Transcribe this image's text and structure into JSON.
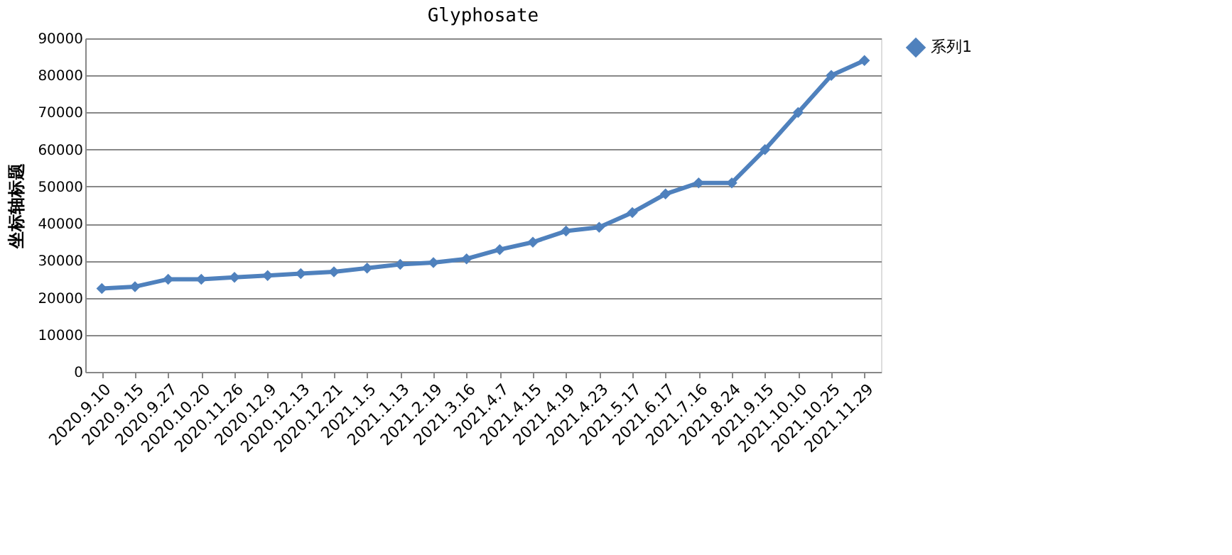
{
  "chart_data": {
    "type": "line",
    "title": "Glyphosate",
    "ylabel": "坐标轴标题",
    "categories": [
      "2020.9.10",
      "2020.9.15",
      "2020.9.27",
      "2020.10.20",
      "2020.11.26",
      "2020.12.9",
      "2020.12.13",
      "2020.12.21",
      "2021.1.5",
      "2021.1.13",
      "2021.2.19",
      "2021.3.16",
      "2021.4.7",
      "2021.4.15",
      "2021.4.19",
      "2021.4.23",
      "2021.5.17",
      "2021.6.17",
      "2021.7.16",
      "2021.8.24",
      "2021.9.15",
      "2021.10.10",
      "2021.10.25",
      "2021.11.29"
    ],
    "series": [
      {
        "name": "系列1",
        "color": "#4f81bd",
        "values": [
          22500,
          23000,
          25000,
          25000,
          25500,
          26000,
          26500,
          27000,
          28000,
          29000,
          29500,
          30500,
          33000,
          35000,
          38000,
          39000,
          43000,
          48000,
          51000,
          51000,
          60000,
          70000,
          80000,
          84000
        ]
      }
    ],
    "ylim": [
      0,
      90000
    ],
    "yticks": [
      0,
      10000,
      20000,
      30000,
      40000,
      50000,
      60000,
      70000,
      80000,
      90000
    ],
    "grid": "y",
    "legend": "right",
    "marker": "diamond",
    "line_style": "solid"
  }
}
